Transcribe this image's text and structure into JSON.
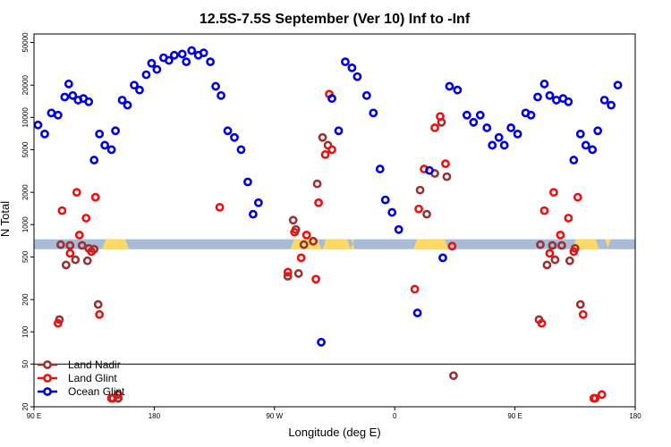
{
  "chart_data": {
    "type": "scatter",
    "title": "12.5S-7.5S September (Ver 10)   Inf to -Inf",
    "xlabel": "Longitude (deg E)",
    "ylabel": "N Total",
    "x_ticks": [
      {
        "value": 90,
        "label": "90 E"
      },
      {
        "value": 180,
        "label": "180"
      },
      {
        "value": 270,
        "label": "90 W"
      },
      {
        "value": 360,
        "label": "0"
      },
      {
        "value": 450,
        "label": "90 E"
      },
      {
        "value": 540,
        "label": "180"
      }
    ],
    "xlim": [
      90,
      540
    ],
    "y_scale": "log",
    "y_ticks": [
      {
        "value": 20,
        "label": "20"
      },
      {
        "value": 50,
        "label": "50"
      },
      {
        "value": 100,
        "label": "100"
      },
      {
        "value": 200,
        "label": "200"
      },
      {
        "value": 500,
        "label": "500"
      },
      {
        "value": 1000,
        "label": "1000"
      },
      {
        "value": 2000,
        "label": "2000"
      },
      {
        "value": 5000,
        "label": "5000"
      },
      {
        "value": 10000,
        "label": "10000"
      },
      {
        "value": 20000,
        "label": "20000"
      },
      {
        "value": 50000,
        "label": "50000"
      }
    ],
    "ylim": [
      20,
      60000
    ],
    "lower_panel_boundary": 50,
    "band": {
      "y_low": 590,
      "y_high": 730,
      "color": "#a8bcd8",
      "land_color": "#ffd966",
      "land_segments": [
        [
          141,
          161
        ],
        [
          282,
          305
        ],
        [
          327,
          330
        ],
        [
          306,
          327
        ],
        [
          374,
          400
        ],
        [
          493,
          513
        ],
        [
          519,
          520
        ]
      ]
    },
    "legend": {
      "placement": "bottom-left",
      "entries": [
        "Land Nadir",
        "Land Glint",
        "Ocean Glint"
      ]
    },
    "series": [
      {
        "name": "Land Nadir",
        "color": "#993333",
        "points": [
          [
            109,
            130
          ],
          [
            110,
            650
          ],
          [
            114,
            420
          ],
          [
            117,
            640
          ],
          [
            121,
            470
          ],
          [
            126,
            640
          ],
          [
            130,
            460
          ],
          [
            131,
            600
          ],
          [
            135,
            590
          ],
          [
            138,
            180
          ],
          [
            149,
            24
          ],
          [
            149,
            24
          ],
          [
            153,
            24
          ],
          [
            153,
            24
          ],
          [
            280,
            330
          ],
          [
            284,
            1100
          ],
          [
            286,
            900
          ],
          [
            288,
            350
          ],
          [
            292,
            650
          ],
          [
            299,
            700
          ],
          [
            302,
            2400
          ],
          [
            306,
            6500
          ],
          [
            310,
            5500
          ],
          [
            379,
            2100
          ],
          [
            384,
            1250
          ],
          [
            390,
            3000
          ],
          [
            395,
            9000
          ],
          [
            399,
            2800
          ],
          [
            404,
            39
          ],
          [
            468,
            130
          ],
          [
            469,
            650
          ],
          [
            474,
            420
          ],
          [
            478,
            640
          ],
          [
            480,
            470
          ],
          [
            485,
            640
          ],
          [
            491,
            460
          ],
          [
            495,
            600
          ],
          [
            499,
            180
          ]
        ]
      },
      {
        "name": "Land Glint",
        "color": "#ee1111",
        "points": [
          [
            108,
            120
          ],
          [
            111,
            1350
          ],
          [
            117,
            540
          ],
          [
            122,
            2000
          ],
          [
            124,
            800
          ],
          [
            129,
            1150
          ],
          [
            133,
            560
          ],
          [
            136,
            1800
          ],
          [
            139,
            145
          ],
          [
            148,
            24
          ],
          [
            148,
            24
          ],
          [
            153,
            26
          ],
          [
            229,
            1450
          ],
          [
            280,
            360
          ],
          [
            285,
            850
          ],
          [
            290,
            490
          ],
          [
            294,
            800
          ],
          [
            301,
            310
          ],
          [
            303,
            1600
          ],
          [
            308,
            4500
          ],
          [
            311,
            16500
          ],
          [
            313,
            5000
          ],
          [
            375,
            250
          ],
          [
            378,
            1400
          ],
          [
            382,
            3300
          ],
          [
            390,
            8000
          ],
          [
            394,
            10200
          ],
          [
            398,
            3700
          ],
          [
            403,
            630
          ],
          [
            470,
            120
          ],
          [
            472,
            1350
          ],
          [
            476,
            540
          ],
          [
            479,
            2000
          ],
          [
            484,
            800
          ],
          [
            490,
            1150
          ],
          [
            494,
            560
          ],
          [
            497,
            1800
          ],
          [
            501,
            145
          ],
          [
            509,
            24
          ],
          [
            510,
            24
          ],
          [
            515,
            26
          ]
        ]
      },
      {
        "name": "Ocean Glint",
        "color": "#0000dd",
        "points": [
          [
            93,
            8500
          ],
          [
            98,
            7000
          ],
          [
            103,
            11000
          ],
          [
            108,
            10500
          ],
          [
            113,
            15500
          ],
          [
            116,
            20500
          ],
          [
            119,
            16000
          ],
          [
            123,
            14500
          ],
          [
            127,
            15000
          ],
          [
            131,
            14000
          ],
          [
            135,
            4000
          ],
          [
            139,
            7000
          ],
          [
            143,
            5500
          ],
          [
            148,
            5000
          ],
          [
            151,
            7500
          ],
          [
            156,
            14500
          ],
          [
            160,
            13000
          ],
          [
            165,
            20000
          ],
          [
            169,
            18000
          ],
          [
            174,
            25000
          ],
          [
            178,
            32000
          ],
          [
            182,
            28000
          ],
          [
            187,
            36000
          ],
          [
            191,
            34000
          ],
          [
            195,
            38000
          ],
          [
            201,
            39000
          ],
          [
            204,
            33000
          ],
          [
            208,
            42000
          ],
          [
            213,
            38000
          ],
          [
            217,
            40000
          ],
          [
            222,
            33000
          ],
          [
            226,
            19500
          ],
          [
            230,
            16000
          ],
          [
            235,
            7500
          ],
          [
            240,
            6500
          ],
          [
            245,
            5000
          ],
          [
            250,
            2500
          ],
          [
            254,
            1250
          ],
          [
            258,
            1600
          ],
          [
            305,
            80
          ],
          [
            313,
            15000
          ],
          [
            318,
            7500
          ],
          [
            323,
            33000
          ],
          [
            328,
            29000
          ],
          [
            332,
            24000
          ],
          [
            339,
            16000
          ],
          [
            344,
            11000
          ],
          [
            349,
            3300
          ],
          [
            353,
            1700
          ],
          [
            358,
            1300
          ],
          [
            363,
            900
          ],
          [
            377,
            150
          ],
          [
            386,
            3200
          ],
          [
            396,
            490
          ],
          [
            401,
            19500
          ],
          [
            407,
            18000
          ],
          [
            414,
            10500
          ],
          [
            419,
            9000
          ],
          [
            424,
            10500
          ],
          [
            429,
            8000
          ],
          [
            433,
            5500
          ],
          [
            438,
            6500
          ],
          [
            442,
            5500
          ],
          [
            447,
            8000
          ],
          [
            452,
            7000
          ],
          [
            458,
            11000
          ],
          [
            462,
            10500
          ],
          [
            467,
            15500
          ],
          [
            472,
            20500
          ],
          [
            476,
            16000
          ],
          [
            481,
            14500
          ],
          [
            486,
            15000
          ],
          [
            490,
            14000
          ],
          [
            494,
            4000
          ],
          [
            499,
            7000
          ],
          [
            503,
            5500
          ],
          [
            508,
            5000
          ],
          [
            512,
            7500
          ],
          [
            517,
            14500
          ],
          [
            522,
            13000
          ],
          [
            527,
            20000
          ]
        ]
      }
    ]
  }
}
